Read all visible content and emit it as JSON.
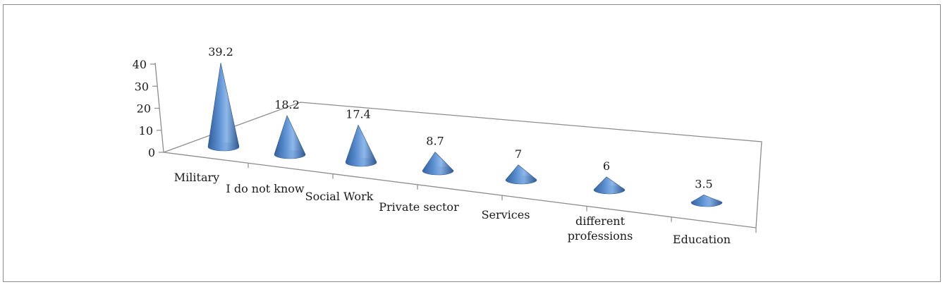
{
  "chart_data": {
    "type": "bar",
    "style": "3d-cone",
    "categories": [
      "Military",
      "I do not know",
      "Social Work",
      "Private sector",
      "Services",
      "different professions",
      "Education"
    ],
    "category_lines": [
      [
        "Military"
      ],
      [
        "I do not know"
      ],
      [
        "Social Work"
      ],
      [
        "Private sector"
      ],
      [
        "Services"
      ],
      [
        "different",
        "professions"
      ],
      [
        "Education"
      ]
    ],
    "values": [
      39.2,
      18.2,
      17.4,
      8.7,
      7,
      6,
      3.5
    ],
    "value_labels": [
      "39.2",
      "18.2",
      "17.4",
      "8.7",
      "7",
      "6",
      "3.5"
    ],
    "yticks": [
      "0",
      "10",
      "20",
      "30",
      "40"
    ],
    "ylim": [
      0,
      40
    ],
    "grid": false,
    "legend": "none",
    "color": "#4f81bd"
  }
}
